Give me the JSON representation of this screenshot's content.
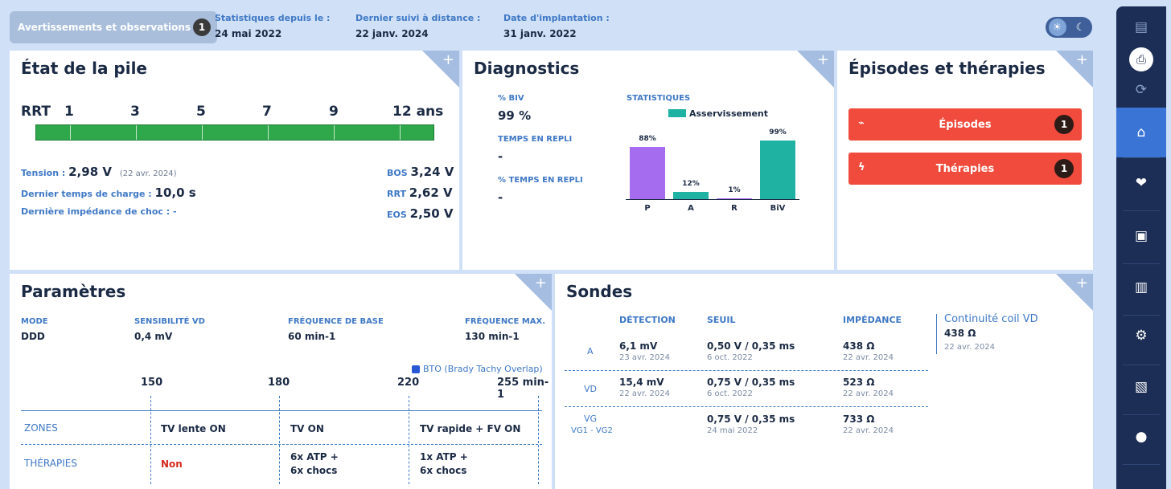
{
  "topbar": {
    "warnings_label": "Avertissements et observations",
    "warnings_count": "1",
    "stats": [
      {
        "label": "Statistiques depuis le :",
        "value": "24 mai 2022"
      },
      {
        "label": "Dernier suivi à distance :",
        "value": "22 janv. 2024"
      },
      {
        "label": "Date d'implantation :",
        "value": "31 janv. 2022"
      }
    ],
    "theme_light_icon": "sun-icon",
    "theme_dark_icon": "moon-icon"
  },
  "battery": {
    "title": "État de la pile",
    "scale": [
      "RRT",
      "1",
      "3",
      "5",
      "7",
      "9",
      "12 ans"
    ],
    "tension_label": "Tension :",
    "tension_value": "2,98 V",
    "tension_date": "(22 avr. 2024)",
    "charge_label": "Dernier temps de charge :",
    "charge_value": "10,0 s",
    "impedance_label": "Dernière impédance de choc :",
    "impedance_value": "-",
    "bos_label": "BOS",
    "bos_value": "3,24 V",
    "rrt_label": "RRT",
    "rrt_value": "2,62 V",
    "eos_label": "EOS",
    "eos_value": "2,50 V"
  },
  "diagnostics": {
    "title": "Diagnostics",
    "biv_label": "% BIV",
    "biv_value": "99 %",
    "repli_label": "TEMPS EN REPLI",
    "repli_value": "-",
    "pct_repli_label": "% TEMPS EN REPLI",
    "pct_repli_value": "-",
    "stats_label": "STATISTIQUES",
    "legend": "Asservissement",
    "colors": {
      "P": "#a66cf0",
      "A": "#1fb1a2",
      "R": "#a66cf0",
      "BiV": "#1fb1a2"
    }
  },
  "chart_data": {
    "type": "bar",
    "categories": [
      "P",
      "A",
      "R",
      "BiV"
    ],
    "values": [
      88,
      12,
      1,
      99
    ],
    "value_labels": [
      "88%",
      "12%",
      "1%",
      "99%"
    ],
    "ylim": [
      0,
      100
    ]
  },
  "episodes": {
    "title": "Épisodes et thérapies",
    "items": [
      {
        "label": "Épisodes",
        "count": "1",
        "icon": "ecg-icon"
      },
      {
        "label": "Thérapies",
        "count": "1",
        "icon": "bolt-icon"
      }
    ]
  },
  "params": {
    "title": "Paramètres",
    "cols": [
      {
        "label": "MODE",
        "value": "DDD"
      },
      {
        "label": "SENSIBILITÉ VD",
        "value": "0,4 mV"
      },
      {
        "label": "FRÉQUENCE DE BASE",
        "value": "60 min-1"
      },
      {
        "label": "FRÉQUENCE MAX.",
        "value": "130 min-1"
      }
    ],
    "bto": "BTO (Brady Tachy Overlap)",
    "axis": [
      "150",
      "180",
      "220",
      "255 min-1"
    ],
    "zones_label": "ZONES",
    "therapies_label": "THÉRAPIES",
    "zones": [
      "TV lente ON",
      "TV ON",
      "TV rapide + FV ON"
    ],
    "therapies": [
      "Non",
      "6x ATP +",
      "6x chocs",
      "1x ATP +",
      "6x chocs"
    ]
  },
  "leads": {
    "title": "Sondes",
    "headers": [
      "DÉTECTION",
      "SEUIL",
      "IMPÉDANCE"
    ],
    "rows": [
      {
        "name": "A",
        "sub": "",
        "detect": "6,1 mV",
        "detect_date": "23 avr. 2024",
        "seuil": "0,50 V / 0,35 ms",
        "seuil_date": "6 oct. 2022",
        "imp": "438 Ω",
        "imp_date": "22 avr. 2024"
      },
      {
        "name": "VD",
        "sub": "",
        "detect": "15,4 mV",
        "detect_date": "22 avr. 2024",
        "seuil": "0,75 V / 0,35 ms",
        "seuil_date": "6 oct. 2022",
        "imp": "523 Ω",
        "imp_date": "22 avr. 2024"
      },
      {
        "name": "VG",
        "sub": "VG1 - VG2",
        "detect": "",
        "detect_date": "",
        "seuil": "0,75 V / 0,35 ms",
        "seuil_date": "24 mai 2022",
        "imp": "733 Ω",
        "imp_date": "22 avr. 2024"
      }
    ],
    "coil_label": "Continuité coil VD",
    "coil_value": "438 Ω",
    "coil_date": "22 avr. 2024"
  },
  "nav": {
    "items": [
      "document-icon",
      "print-icon",
      "sync-icon",
      "home-icon",
      "heart-link-icon",
      "monitor-icon",
      "stats-icon",
      "settings-icon",
      "report-icon",
      "user-icon"
    ]
  }
}
